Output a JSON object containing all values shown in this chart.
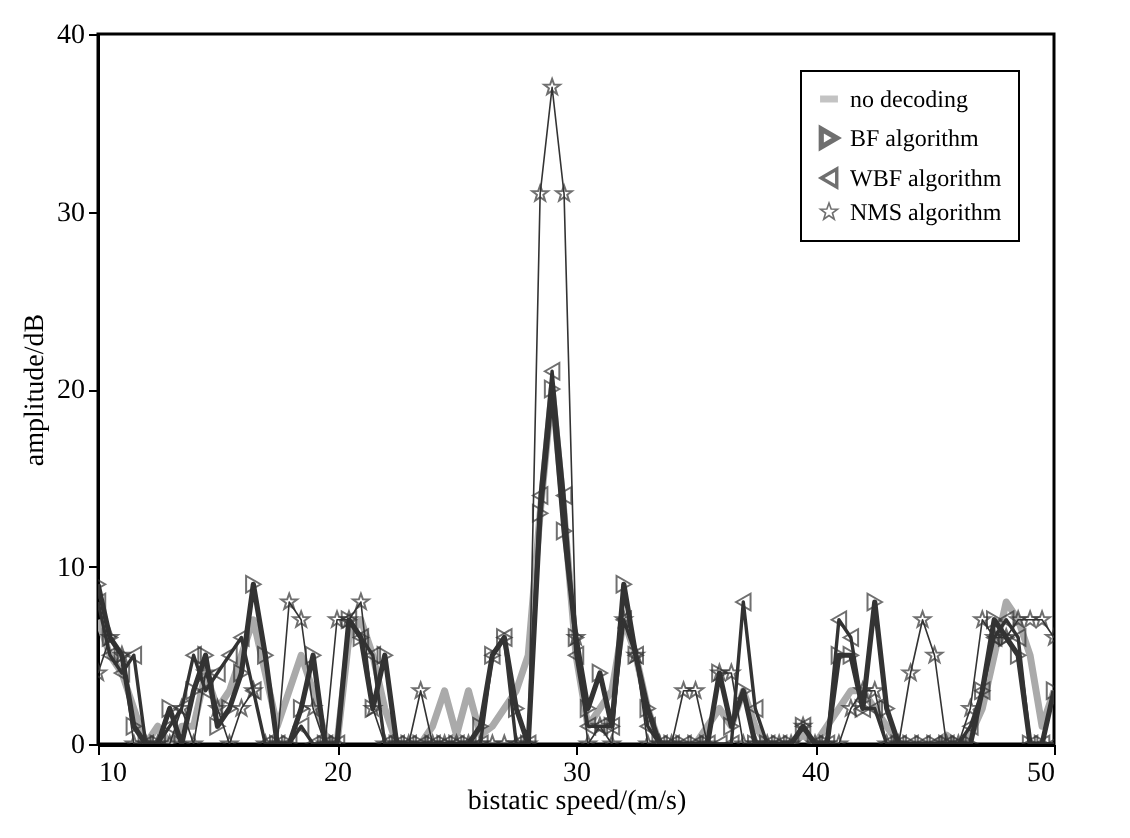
{
  "chart_data": {
    "type": "line",
    "xlabel": "bistatic speed/(m/s)",
    "ylabel": "amplitude/dB",
    "xlim": [
      10,
      50
    ],
    "xticks": [
      10,
      20,
      30,
      40,
      50
    ],
    "ylim": [
      0,
      40
    ],
    "yticks": [
      0,
      10,
      20,
      30,
      40
    ],
    "grid": false,
    "legend": "top right",
    "x": [
      10,
      10.5,
      11,
      11.5,
      12,
      12.5,
      13,
      13.5,
      14,
      14.5,
      15,
      15.5,
      16,
      16.5,
      17,
      17.5,
      18,
      18.5,
      19,
      19.5,
      20,
      20.5,
      21,
      21.5,
      22,
      22.5,
      23,
      23.5,
      24,
      24.5,
      25,
      25.5,
      26,
      26.5,
      27,
      27.5,
      28,
      28.5,
      29,
      29.5,
      30,
      30.5,
      31,
      31.5,
      32,
      32.5,
      33,
      33.5,
      34,
      34.5,
      35,
      35.5,
      36,
      36.5,
      37,
      37.5,
      38,
      38.5,
      39,
      39.5,
      40,
      40.5,
      41,
      41.5,
      42,
      42.5,
      43,
      43.5,
      44,
      44.5,
      45,
      45.5,
      46,
      46.5,
      47,
      47.5,
      48,
      48.5,
      49,
      49.5,
      50
    ],
    "series": [
      {
        "name": "no decoding",
        "color": "#aaaaaa",
        "marker": "none",
        "values": [
          7,
          5,
          4,
          2,
          0,
          1,
          0,
          1,
          1,
          4,
          2,
          3,
          5,
          7,
          4,
          1,
          3,
          5,
          3,
          0.5,
          0,
          6,
          7,
          5,
          2,
          0,
          0,
          0,
          1,
          3,
          0.5,
          3,
          0.5,
          1,
          2,
          3,
          5,
          13,
          20,
          13,
          5,
          1,
          2,
          3,
          7,
          5,
          2,
          0,
          0,
          0,
          0,
          1,
          2,
          1,
          3,
          1,
          0,
          0,
          0,
          0.5,
          0,
          1,
          2,
          3,
          3,
          2,
          1,
          0,
          0,
          0,
          0,
          0.5,
          0,
          0.5,
          2,
          5,
          8,
          7,
          5,
          1,
          3
        ]
      },
      {
        "name": "BF algorithm",
        "color": "#333333",
        "marker": "triangle-right",
        "values": [
          9,
          6,
          5,
          1,
          0,
          0,
          2,
          0,
          3,
          5,
          1,
          2,
          4,
          9,
          5,
          0,
          0,
          2,
          5,
          0,
          0,
          7,
          6,
          2,
          5,
          0,
          0,
          0,
          0,
          0,
          0,
          0,
          1,
          5,
          6,
          2,
          0,
          13,
          20,
          12,
          6,
          2,
          4,
          1,
          9,
          5,
          2,
          0,
          0,
          0,
          0,
          0,
          4,
          1,
          3,
          0,
          0,
          0,
          0,
          1,
          0,
          0,
          5,
          5,
          2,
          8,
          2,
          0,
          0,
          0,
          0,
          0,
          0,
          0,
          3,
          7,
          6,
          5,
          0,
          0,
          3
        ]
      },
      {
        "name": "WBF algorithm",
        "color": "#333333",
        "marker": "triangle-left",
        "values": [
          8,
          5,
          4,
          5,
          0,
          0,
          1,
          2,
          5,
          3,
          4,
          5,
          6,
          3,
          0,
          0,
          0,
          1,
          0,
          0,
          0,
          7,
          6,
          5,
          0,
          0,
          0,
          0,
          0,
          0,
          0,
          0,
          0,
          5,
          6,
          0,
          0,
          14,
          21,
          14,
          5,
          1,
          1,
          1,
          7,
          5,
          1,
          0,
          0,
          0,
          0,
          0,
          0,
          0,
          8,
          2,
          0,
          0,
          0,
          1,
          0,
          0,
          7,
          6,
          2,
          2,
          0,
          0,
          0,
          0,
          0,
          0,
          0,
          1,
          3,
          6,
          7,
          6,
          0,
          0,
          0
        ]
      },
      {
        "name": "NMS algorithm",
        "color": "#333333",
        "marker": "star",
        "values": [
          4,
          6,
          5,
          0,
          0,
          0,
          0,
          2,
          0,
          4,
          2,
          0,
          2,
          3,
          0,
          0,
          8,
          7,
          2,
          0,
          7,
          7,
          8,
          2,
          0,
          0,
          0,
          3,
          0,
          0,
          0,
          0,
          0,
          0,
          0,
          0,
          0,
          31,
          37,
          31,
          6,
          0,
          1,
          0,
          7,
          5,
          0,
          0,
          0,
          3,
          3,
          0,
          4,
          4,
          0,
          0,
          0,
          0,
          0,
          1,
          0,
          0,
          0,
          2,
          3,
          3,
          0,
          0,
          4,
          7,
          5,
          0,
          0,
          2,
          7,
          6,
          6,
          7,
          7,
          7,
          6
        ]
      }
    ]
  }
}
